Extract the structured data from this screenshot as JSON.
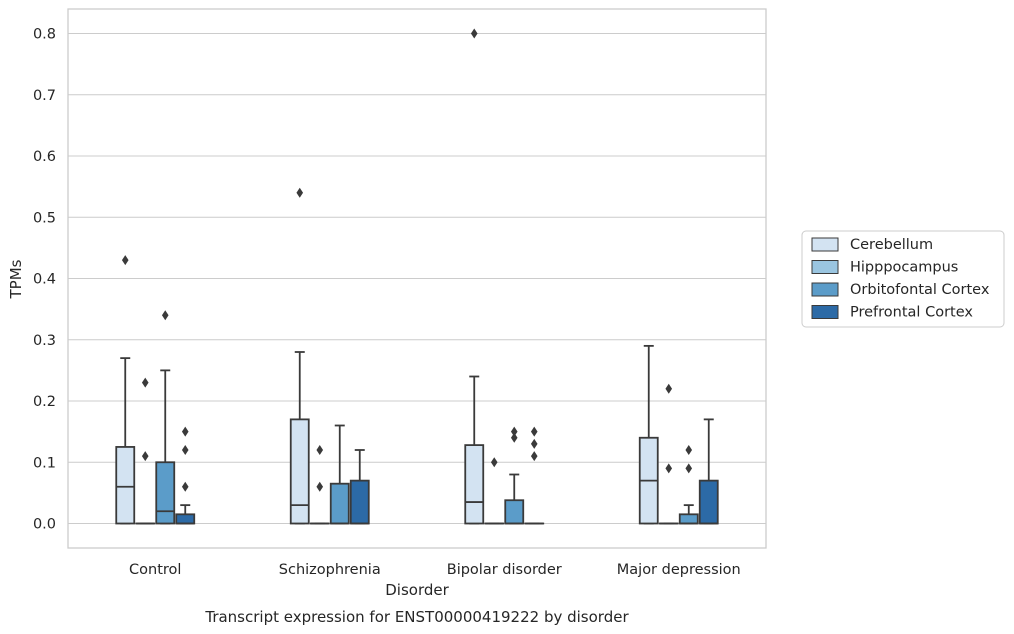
{
  "chart_data": {
    "type": "boxplot",
    "title": "",
    "caption": "Transcript expression for ENST00000419222 by disorder",
    "xlabel": "Disorder",
    "ylabel": "TPMs",
    "ylim": [
      -0.04,
      0.84
    ],
    "yticks": [
      0.0,
      0.1,
      0.2,
      0.3,
      0.4,
      0.5,
      0.6,
      0.7,
      0.8
    ],
    "ytick_labels": [
      "0.0",
      "0.1",
      "0.2",
      "0.3",
      "0.4",
      "0.5",
      "0.6",
      "0.7",
      "0.8"
    ],
    "grid": "horizontal",
    "legend_position": "right",
    "categories": [
      "Control",
      "Schizophrenia",
      "Bipolar disorder",
      "Major depression"
    ],
    "series": [
      {
        "name": "Cerebellum",
        "color": "#d3e3f2",
        "boxes": [
          {
            "q1": 0.0,
            "median": 0.06,
            "q3": 0.125,
            "whisker_low": 0.0,
            "whisker_high": 0.27,
            "outliers": [
              0.43
            ]
          },
          {
            "q1": 0.0,
            "median": 0.03,
            "q3": 0.17,
            "whisker_low": 0.0,
            "whisker_high": 0.28,
            "outliers": [
              0.54
            ]
          },
          {
            "q1": 0.0,
            "median": 0.035,
            "q3": 0.128,
            "whisker_low": 0.0,
            "whisker_high": 0.24,
            "outliers": [
              0.8
            ]
          },
          {
            "q1": 0.0,
            "median": 0.07,
            "q3": 0.14,
            "whisker_low": 0.0,
            "whisker_high": 0.29,
            "outliers": []
          }
        ]
      },
      {
        "name": "Hipppocampus",
        "color": "#9ac5e0",
        "boxes": [
          {
            "q1": 0.0,
            "median": 0.0,
            "q3": 0.0,
            "whisker_low": 0.0,
            "whisker_high": 0.0,
            "outliers": [
              0.11,
              0.23
            ]
          },
          {
            "q1": 0.0,
            "median": 0.0,
            "q3": 0.0,
            "whisker_low": 0.0,
            "whisker_high": 0.0,
            "outliers": [
              0.06,
              0.12
            ]
          },
          {
            "q1": 0.0,
            "median": 0.0,
            "q3": 0.0,
            "whisker_low": 0.0,
            "whisker_high": 0.0,
            "outliers": [
              0.1
            ]
          },
          {
            "q1": 0.0,
            "median": 0.0,
            "q3": 0.0,
            "whisker_low": 0.0,
            "whisker_high": 0.0,
            "outliers": [
              0.09,
              0.22
            ]
          }
        ]
      },
      {
        "name": "Orbitofontal Cortex",
        "color": "#5b9cc9",
        "boxes": [
          {
            "q1": 0.0,
            "median": 0.02,
            "q3": 0.1,
            "whisker_low": 0.0,
            "whisker_high": 0.25,
            "outliers": [
              0.34
            ]
          },
          {
            "q1": 0.0,
            "median": 0.0,
            "q3": 0.065,
            "whisker_low": 0.0,
            "whisker_high": 0.16,
            "outliers": []
          },
          {
            "q1": 0.0,
            "median": 0.0,
            "q3": 0.038,
            "whisker_low": 0.0,
            "whisker_high": 0.08,
            "outliers": [
              0.14,
              0.15
            ]
          },
          {
            "q1": 0.0,
            "median": 0.0,
            "q3": 0.015,
            "whisker_low": 0.0,
            "whisker_high": 0.03,
            "outliers": [
              0.09,
              0.12
            ]
          }
        ]
      },
      {
        "name": "Prefrontal Cortex",
        "color": "#2c6aa6",
        "boxes": [
          {
            "q1": 0.0,
            "median": 0.0,
            "q3": 0.015,
            "whisker_low": 0.0,
            "whisker_high": 0.03,
            "outliers": [
              0.06,
              0.12,
              0.15
            ]
          },
          {
            "q1": 0.0,
            "median": 0.0,
            "q3": 0.07,
            "whisker_low": 0.0,
            "whisker_high": 0.12,
            "outliers": []
          },
          {
            "q1": 0.0,
            "median": 0.0,
            "q3": 0.0,
            "whisker_low": 0.0,
            "whisker_high": 0.0,
            "outliers": [
              0.11,
              0.13,
              0.15
            ]
          },
          {
            "q1": 0.0,
            "median": 0.0,
            "q3": 0.07,
            "whisker_low": 0.0,
            "whisker_high": 0.17,
            "outliers": []
          }
        ]
      }
    ]
  }
}
